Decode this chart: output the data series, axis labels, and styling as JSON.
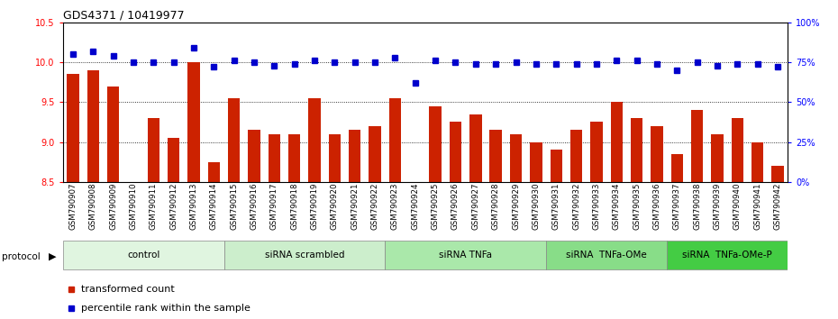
{
  "title": "GDS4371 / 10419977",
  "samples": [
    "GSM790907",
    "GSM790908",
    "GSM790909",
    "GSM790910",
    "GSM790911",
    "GSM790912",
    "GSM790913",
    "GSM790914",
    "GSM790915",
    "GSM790916",
    "GSM790917",
    "GSM790918",
    "GSM790919",
    "GSM790920",
    "GSM790921",
    "GSM790922",
    "GSM790923",
    "GSM790924",
    "GSM790925",
    "GSM790926",
    "GSM790927",
    "GSM790928",
    "GSM790929",
    "GSM790930",
    "GSM790931",
    "GSM790932",
    "GSM790933",
    "GSM790934",
    "GSM790935",
    "GSM790936",
    "GSM790937",
    "GSM790938",
    "GSM790939",
    "GSM790940",
    "GSM790941",
    "GSM790942"
  ],
  "bar_values": [
    9.85,
    9.9,
    9.7,
    8.5,
    9.3,
    9.05,
    10.0,
    8.75,
    9.55,
    9.15,
    9.1,
    9.1,
    9.55,
    9.1,
    9.15,
    9.2,
    9.55,
    8.5,
    9.45,
    9.25,
    9.35,
    9.15,
    9.1,
    9.0,
    8.9,
    9.15,
    9.25,
    9.5,
    9.3,
    9.2,
    8.85,
    9.4,
    9.1,
    9.3,
    9.0,
    8.7
  ],
  "percentile_values": [
    80,
    82,
    79,
    75,
    75,
    75,
    84,
    72,
    76,
    75,
    73,
    74,
    76,
    75,
    75,
    75,
    78,
    62,
    76,
    75,
    74,
    74,
    75,
    74,
    74,
    74,
    74,
    76,
    76,
    74,
    70,
    75,
    73,
    74,
    74,
    72
  ],
  "groups": [
    {
      "label": "control",
      "start": 0,
      "end": 8,
      "color": "#e0f5e0"
    },
    {
      "label": "siRNA scrambled",
      "start": 8,
      "end": 16,
      "color": "#cceecc"
    },
    {
      "label": "siRNA TNFa",
      "start": 16,
      "end": 24,
      "color": "#aae8aa"
    },
    {
      "label": "siRNA  TNFa-OMe",
      "start": 24,
      "end": 30,
      "color": "#88dd88"
    },
    {
      "label": "siRNA  TNFa-OMe-P",
      "start": 30,
      "end": 36,
      "color": "#44cc44"
    }
  ],
  "ylim_left": [
    8.5,
    10.5
  ],
  "ylim_right": [
    0,
    100
  ],
  "yticks_left": [
    8.5,
    9.0,
    9.5,
    10.0,
    10.5
  ],
  "yticks_right": [
    0,
    25,
    50,
    75,
    100
  ],
  "bar_color": "#cc2200",
  "dot_color": "#0000cc",
  "bg_color": "#ffffff",
  "title_fontsize": 9,
  "tick_fontsize": 7
}
